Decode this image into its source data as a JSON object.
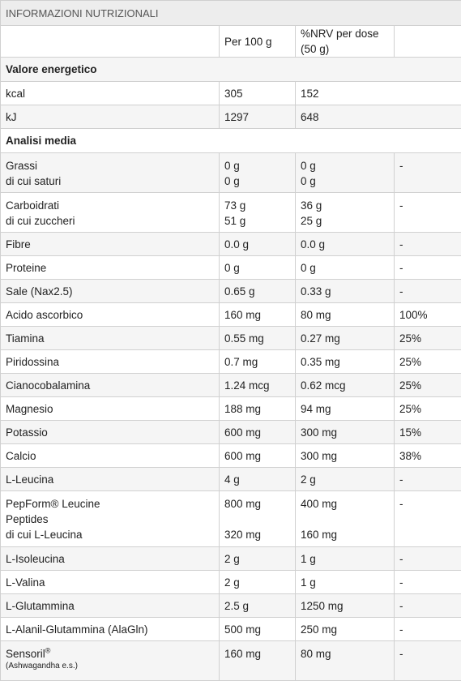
{
  "title": "INFORMAZIONI NUTRIZIONALI",
  "headers": [
    "",
    "Per 100 g",
    "%NRV per dose (50 g)",
    ""
  ],
  "section_energy": "Valore energetico",
  "energy_rows": [
    {
      "name": "kcal",
      "per100": "305",
      "dose": "152"
    },
    {
      "name": "kJ",
      "per100": "1297",
      "dose": "648"
    }
  ],
  "section_analysis": "Analisi media",
  "grassi": {
    "name1": "Grassi",
    "name2": "di cui saturi",
    "p1": "0 g",
    "p2": "0 g",
    "d1": "0 g",
    "d2": "0 g",
    "nrv": "-"
  },
  "carbo": {
    "name1": "Carboidrati",
    "name2": "di cui zuccheri",
    "p1": "73 g",
    "p2": "51 g",
    "d1": "36 g",
    "d2": "25 g",
    "nrv": "-"
  },
  "rows_a": [
    {
      "name": "Fibre",
      "per100": "0.0 g",
      "dose": "0.0 g",
      "nrv": "-"
    },
    {
      "name": "Proteine",
      "per100": "0 g",
      "dose": "0 g",
      "nrv": "-"
    },
    {
      "name": "Sale (Nax2.5)",
      "per100": "0.65 g",
      "dose": "0.33 g",
      "nrv": "-"
    },
    {
      "name": "Acido ascorbico",
      "per100": "160 mg",
      "dose": "80 mg",
      "nrv": "100%"
    },
    {
      "name": "Tiamina",
      "per100": "0.55 mg",
      "dose": "0.27 mg",
      "nrv": "25%"
    },
    {
      "name": "Piridossina",
      "per100": "0.7 mg",
      "dose": "0.35 mg",
      "nrv": "25%"
    },
    {
      "name": "Cianocobalamina",
      "per100": "1.24 mcg",
      "dose": "0.62 mcg",
      "nrv": "25%"
    },
    {
      "name": "Magnesio",
      "per100": "188 mg",
      "dose": "94 mg",
      "nrv": "25%"
    },
    {
      "name": "Potassio",
      "per100": "600 mg",
      "dose": "300 mg",
      "nrv": "15%"
    },
    {
      "name": "Calcio",
      "per100": "600 mg",
      "dose": "300 mg",
      "nrv": "38%"
    },
    {
      "name": "L-Leucina",
      "per100": "4 g",
      "dose": "2 g",
      "nrv": "-"
    }
  ],
  "pepform": {
    "name1": "PepForm® Leucine",
    "name2": "Peptides",
    "name3": "di cui L-Leucina",
    "p1": "800 mg",
    "p3": "320 mg",
    "d1": "400 mg",
    "d3": "160 mg",
    "nrv": "-"
  },
  "rows_b": [
    {
      "name": "L-Isoleucina",
      "per100": "2 g",
      "dose": "1 g",
      "nrv": "-"
    },
    {
      "name": "L-Valina",
      "per100": "2 g",
      "dose": "1 g",
      "nrv": "-"
    },
    {
      "name": "L-Glutammina",
      "per100": "2.5 g",
      "dose": "1250 mg",
      "nrv": "-"
    },
    {
      "name": "L-Alanil-Glutammina (AlaGln)",
      "per100": "500 mg",
      "dose": "250 mg",
      "nrv": "-"
    }
  ],
  "sensoril": {
    "name": "Sensoril",
    "reg": "®",
    "sub": "(Ashwagandha e.s.)",
    "per100": "160 mg",
    "dose": "80 mg",
    "nrv": "-"
  }
}
